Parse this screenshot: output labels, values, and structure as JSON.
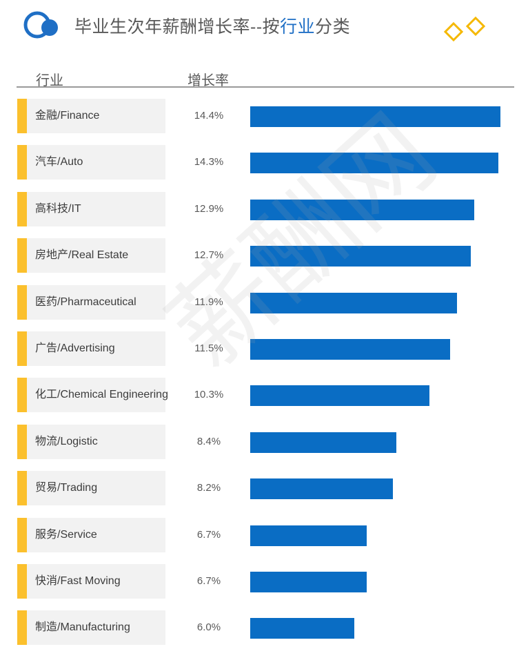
{
  "header": {
    "title_prefix": "毕业生次年薪酬增长率--按",
    "title_highlight": "行业",
    "title_suffix": "分类"
  },
  "colors": {
    "bar": "#0a6dc4",
    "tick": "#fbc02d",
    "highlight": "#1f6fc5",
    "row_bg": "#f2f2f2"
  },
  "watermark": "薪酬网",
  "chart_data": {
    "type": "bar",
    "orientation": "horizontal",
    "xlabel": "行业",
    "ylabel": "增长率",
    "xlim": [
      0,
      14.4
    ],
    "categories": [
      "金融/Finance",
      "汽车/Auto",
      "高科技/IT",
      "房地产/Real Estate",
      "医药/Pharmaceutical",
      "广告/Advertising",
      "化工/Chemical Engineering",
      "物流/Logistic",
      "贸易/Trading",
      "服务/Service",
      "快消/Fast Moving",
      "制造/Manufacturing"
    ],
    "values": [
      14.4,
      14.3,
      12.9,
      12.7,
      11.9,
      11.5,
      10.3,
      8.4,
      8.2,
      6.7,
      6.7,
      6.0
    ],
    "value_labels": [
      "14.4%",
      "14.3%",
      "12.9%",
      "12.7%",
      "11.9%",
      "11.5%",
      "10.3%",
      "8.4%",
      "8.2%",
      "6.7%",
      "6.7%",
      "6.0%"
    ]
  }
}
